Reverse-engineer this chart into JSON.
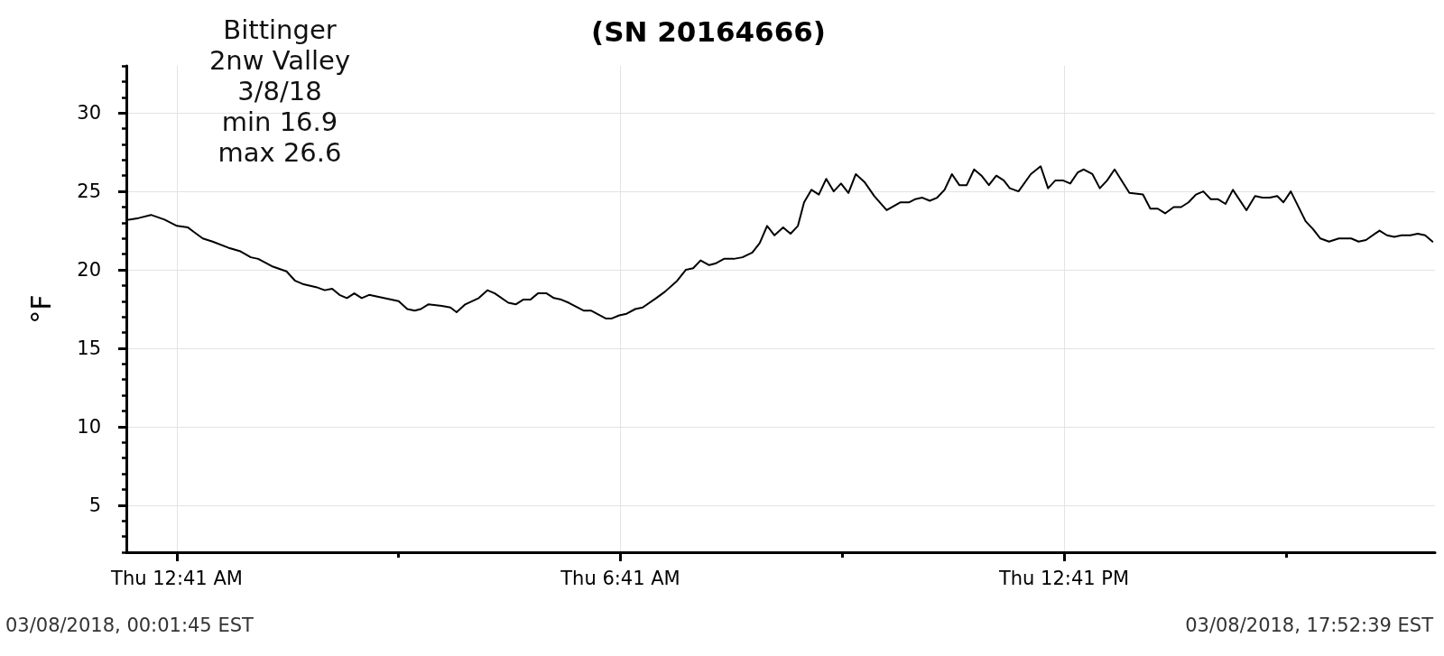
{
  "chart_data": {
    "type": "line",
    "title": "(SN 20164666)",
    "ylabel": "°F",
    "annotations": [
      "Bittinger\n2nw Valley\n3/8/18\nmin 16.9\nmax 26.6",
      "03/08/2018, 00:01:45 EST",
      "03/08/2018, 17:52:39 EST"
    ],
    "x": [
      "2018-03-08T00:02",
      "2018-03-08T00:10",
      "2018-03-08T00:20",
      "2018-03-08T00:31",
      "2018-03-08T00:41",
      "2018-03-08T00:50",
      "2018-03-08T00:55",
      "2018-03-08T01:02",
      "2018-03-08T01:10",
      "2018-03-08T01:23",
      "2018-03-08T01:32",
      "2018-03-08T01:41",
      "2018-03-08T01:47",
      "2018-03-08T01:59",
      "2018-03-08T02:10",
      "2018-03-08T02:17",
      "2018-03-08T02:23",
      "2018-03-08T02:34",
      "2018-03-08T02:41",
      "2018-03-08T02:47",
      "2018-03-08T02:53",
      "2018-03-08T02:59",
      "2018-03-08T03:05",
      "2018-03-08T03:11",
      "2018-03-08T03:17",
      "2018-03-08T03:29",
      "2018-03-08T03:41",
      "2018-03-08T03:48",
      "2018-03-08T03:54",
      "2018-03-08T03:59",
      "2018-03-08T04:05",
      "2018-03-08T04:16",
      "2018-03-08T04:23",
      "2018-03-08T04:28",
      "2018-03-08T04:35",
      "2018-03-08T04:46",
      "2018-03-08T04:53",
      "2018-03-08T04:59",
      "2018-03-08T05:10",
      "2018-03-08T05:16",
      "2018-03-08T05:22",
      "2018-03-08T05:28",
      "2018-03-08T05:34",
      "2018-03-08T05:41",
      "2018-03-08T05:47",
      "2018-03-08T05:53",
      "2018-03-08T05:59",
      "2018-03-08T06:11",
      "2018-03-08T06:17",
      "2018-03-08T06:29",
      "2018-03-08T06:34",
      "2018-03-08T06:40",
      "2018-03-08T06:46",
      "2018-03-08T06:53",
      "2018-03-08T06:59",
      "2018-03-08T07:10",
      "2018-03-08T07:17",
      "2018-03-08T07:27",
      "2018-03-08T07:34",
      "2018-03-08T07:40",
      "2018-03-08T07:46",
      "2018-03-08T07:53",
      "2018-03-08T07:58",
      "2018-03-08T08:05",
      "2018-03-08T08:13",
      "2018-03-08T08:20",
      "2018-03-08T08:28",
      "2018-03-08T08:34",
      "2018-03-08T08:40",
      "2018-03-08T08:46",
      "2018-03-08T08:53",
      "2018-03-08T08:59",
      "2018-03-08T09:05",
      "2018-03-08T09:10",
      "2018-03-08T09:16",
      "2018-03-08T09:22",
      "2018-03-08T09:28",
      "2018-03-08T09:34",
      "2018-03-08T09:40",
      "2018-03-08T09:46",
      "2018-03-08T09:52",
      "2018-03-08T09:59",
      "2018-03-08T10:07",
      "2018-03-08T10:17",
      "2018-03-08T10:28",
      "2018-03-08T10:35",
      "2018-03-08T10:40",
      "2018-03-08T10:46",
      "2018-03-08T10:52",
      "2018-03-08T10:58",
      "2018-03-08T11:04",
      "2018-03-08T11:10",
      "2018-03-08T11:16",
      "2018-03-08T11:22",
      "2018-03-08T11:28",
      "2018-03-08T11:34",
      "2018-03-08T11:40",
      "2018-03-08T11:46",
      "2018-03-08T11:52",
      "2018-03-08T11:57",
      "2018-03-08T12:04",
      "2018-03-08T12:14",
      "2018-03-08T12:22",
      "2018-03-08T12:28",
      "2018-03-08T12:34",
      "2018-03-08T12:40",
      "2018-03-08T12:46",
      "2018-03-08T12:52",
      "2018-03-08T12:57",
      "2018-03-08T13:04",
      "2018-03-08T13:10",
      "2018-03-08T13:16",
      "2018-03-08T13:22",
      "2018-03-08T13:34",
      "2018-03-08T13:45",
      "2018-03-08T13:51",
      "2018-03-08T13:57",
      "2018-03-08T14:03",
      "2018-03-08T14:10",
      "2018-03-08T14:16",
      "2018-03-08T14:22",
      "2018-03-08T14:28",
      "2018-03-08T14:34",
      "2018-03-08T14:40",
      "2018-03-08T14:46",
      "2018-03-08T14:52",
      "2018-03-08T14:58",
      "2018-03-08T15:09",
      "2018-03-08T15:16",
      "2018-03-08T15:22",
      "2018-03-08T15:28",
      "2018-03-08T15:34",
      "2018-03-08T15:39",
      "2018-03-08T15:45",
      "2018-03-08T15:57",
      "2018-03-08T16:03",
      "2018-03-08T16:09",
      "2018-03-08T16:16",
      "2018-03-08T16:24",
      "2018-03-08T16:34",
      "2018-03-08T16:40",
      "2018-03-08T16:46",
      "2018-03-08T16:57",
      "2018-03-08T17:03",
      "2018-03-08T17:09",
      "2018-03-08T17:15",
      "2018-03-08T17:22",
      "2018-03-08T17:28",
      "2018-03-08T17:34",
      "2018-03-08T17:40"
    ],
    "series": [
      {
        "color": "#000000",
        "values": [
          23.2,
          23.3,
          23.5,
          23.2,
          22.8,
          22.7,
          22.4,
          22.0,
          21.8,
          21.4,
          21.2,
          20.8,
          20.7,
          20.2,
          19.9,
          19.3,
          19.1,
          18.9,
          18.7,
          18.8,
          18.4,
          18.2,
          18.5,
          18.2,
          18.4,
          18.2,
          18.0,
          17.5,
          17.4,
          17.5,
          17.8,
          17.7,
          17.6,
          17.3,
          17.8,
          18.2,
          18.7,
          18.5,
          17.9,
          17.8,
          18.1,
          18.1,
          18.5,
          18.5,
          18.2,
          18.1,
          17.9,
          17.4,
          17.4,
          16.9,
          16.9,
          17.1,
          17.2,
          17.5,
          17.6,
          18.2,
          18.6,
          19.3,
          20.0,
          20.1,
          20.6,
          20.3,
          20.4,
          20.7,
          20.7,
          20.8,
          21.1,
          21.7,
          22.8,
          22.2,
          22.7,
          22.3,
          22.8,
          24.3,
          25.1,
          24.8,
          25.8,
          25.0,
          25.5,
          24.9,
          26.1,
          25.6,
          24.7,
          23.8,
          24.3,
          24.3,
          24.5,
          24.6,
          24.4,
          24.6,
          25.1,
          26.1,
          25.4,
          25.4,
          26.4,
          26.0,
          25.4,
          26.0,
          25.7,
          25.2,
          25.0,
          26.1,
          26.6,
          25.2,
          25.7,
          25.7,
          25.5,
          26.2,
          26.4,
          26.1,
          25.2,
          25.7,
          26.4,
          24.9,
          24.8,
          23.9,
          23.9,
          23.6,
          24.0,
          24.0,
          24.3,
          24.8,
          25.0,
          24.5,
          24.5,
          24.2,
          25.1,
          23.8,
          24.7,
          24.6,
          24.6,
          24.7,
          24.3,
          25.0,
          23.1,
          22.6,
          22.0,
          21.8,
          22.0,
          22.0,
          21.8,
          21.9,
          22.5,
          22.2,
          22.1,
          22.2,
          22.2,
          22.3,
          22.2,
          21.8
        ]
      }
    ],
    "xlim": [
      "2018-03-08T00:00",
      "2018-03-08T17:42"
    ],
    "xticks": [
      {
        "value": "2018-03-08T00:41",
        "label": "Thu 12:41 AM"
      },
      {
        "value": "2018-03-08T03:41",
        "label": null
      },
      {
        "value": "2018-03-08T06:41",
        "label": "Thu 6:41 AM"
      },
      {
        "value": "2018-03-08T09:41",
        "label": null
      },
      {
        "value": "2018-03-08T12:41",
        "label": "Thu 12:41 PM"
      },
      {
        "value": "2018-03-08T15:41",
        "label": null
      }
    ],
    "ylim": [
      2,
      33
    ],
    "yticks": [
      {
        "value": 2,
        "label": null
      },
      {
        "value": 3,
        "label": null
      },
      {
        "value": 4,
        "label": null
      },
      5,
      {
        "value": 6,
        "label": null
      },
      {
        "value": 7,
        "label": null
      },
      {
        "value": 8,
        "label": null
      },
      {
        "value": 9,
        "label": null
      },
      10,
      {
        "value": 11,
        "label": null
      },
      {
        "value": 12,
        "label": null
      },
      {
        "value": 13,
        "label": null
      },
      {
        "value": 14,
        "label": null
      },
      15,
      {
        "value": 16,
        "label": null
      },
      {
        "value": 17,
        "label": null
      },
      {
        "value": 18,
        "label": null
      },
      {
        "value": 19,
        "label": null
      },
      20,
      {
        "value": 21,
        "label": null
      },
      {
        "value": 22,
        "label": null
      },
      {
        "value": 23,
        "label": null
      },
      {
        "value": 24,
        "label": null
      },
      25,
      {
        "value": 26,
        "label": null
      },
      {
        "value": 27,
        "label": null
      },
      {
        "value": 28,
        "label": null
      },
      {
        "value": 29,
        "label": null
      },
      30,
      {
        "value": 31,
        "label": null
      },
      {
        "value": 32,
        "label": null
      },
      {
        "value": 33,
        "label": null
      }
    ],
    "grid": true,
    "marker": "none",
    "line_style": "solid"
  }
}
